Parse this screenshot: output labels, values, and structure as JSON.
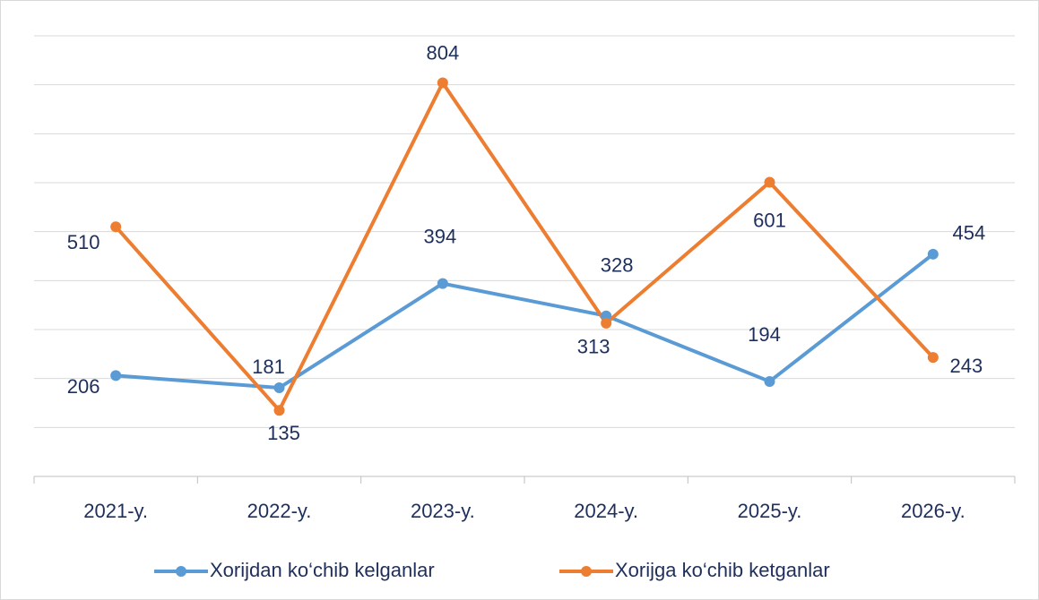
{
  "chart_data": {
    "type": "line",
    "categories": [
      "2021-y.",
      "2022-y.",
      "2023-y.",
      "2024-y.",
      "2025-y.",
      "2026-y."
    ],
    "series": [
      {
        "name": "Xorijdan ko‘chib kelganlar",
        "color": "#5b9bd5",
        "values": [
          206,
          181,
          394,
          328,
          194,
          454
        ]
      },
      {
        "name": "Xorijga ko‘chib ketganlar",
        "color": "#ed7d31",
        "values": [
          510,
          135,
          804,
          313,
          601,
          243
        ]
      }
    ],
    "ylim": [
      0,
      900
    ],
    "yticks": [
      0,
      100,
      200,
      300,
      400,
      500,
      600,
      700,
      800,
      900
    ],
    "grid": true,
    "legend": "bottom"
  }
}
